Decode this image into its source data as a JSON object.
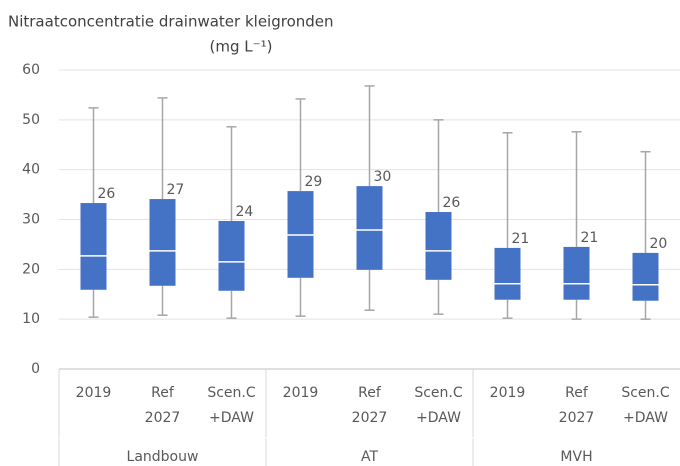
{
  "chart_data": {
    "type": "box",
    "title": [
      "Nitraatconcentratie drainwater kleigronden",
      "(mg L⁻¹)"
    ],
    "groups": [
      {
        "name": "Landbouw",
        "categories": [
          [
            "2019"
          ],
          [
            "Ref",
            "2027"
          ],
          [
            "Scen.C",
            "+DAW"
          ]
        ]
      },
      {
        "name": "AT",
        "categories": [
          [
            "2019"
          ],
          [
            "Ref",
            "2027"
          ],
          [
            "Scen.C",
            "+DAW"
          ]
        ]
      },
      {
        "name": "MVH",
        "categories": [
          [
            "2019"
          ],
          [
            "Ref",
            "2027"
          ],
          [
            "Scen.C",
            "+DAW"
          ]
        ]
      }
    ],
    "boxes": [
      {
        "low": 10.4,
        "q1": 15.9,
        "median": 22.7,
        "q3": 33.3,
        "high": 52.4,
        "mean": 26
      },
      {
        "low": 10.8,
        "q1": 16.7,
        "median": 23.7,
        "q3": 34.1,
        "high": 54.4,
        "mean": 27
      },
      {
        "low": 10.2,
        "q1": 15.7,
        "median": 21.5,
        "q3": 29.7,
        "high": 48.6,
        "mean": 24
      },
      {
        "low": 10.6,
        "q1": 18.3,
        "median": 26.9,
        "q3": 35.7,
        "high": 54.2,
        "mean": 29
      },
      {
        "low": 11.8,
        "q1": 19.9,
        "median": 27.9,
        "q3": 36.7,
        "high": 56.8,
        "mean": 30
      },
      {
        "low": 11.0,
        "q1": 17.9,
        "median": 23.7,
        "q3": 31.5,
        "high": 50.0,
        "mean": 26
      },
      {
        "low": 10.2,
        "q1": 13.9,
        "median": 17.1,
        "q3": 24.3,
        "high": 47.4,
        "mean": 21
      },
      {
        "low": 10.0,
        "q1": 13.9,
        "median": 17.1,
        "q3": 24.5,
        "high": 47.6,
        "mean": 21
      },
      {
        "low": 10.0,
        "q1": 13.7,
        "median": 16.9,
        "q3": 23.3,
        "high": 43.6,
        "mean": 20
      }
    ],
    "color": "#4472c4",
    "ylim": [
      0,
      60
    ],
    "yticks": [
      0,
      10,
      20,
      30,
      40,
      50,
      60
    ],
    "grid": true
  }
}
